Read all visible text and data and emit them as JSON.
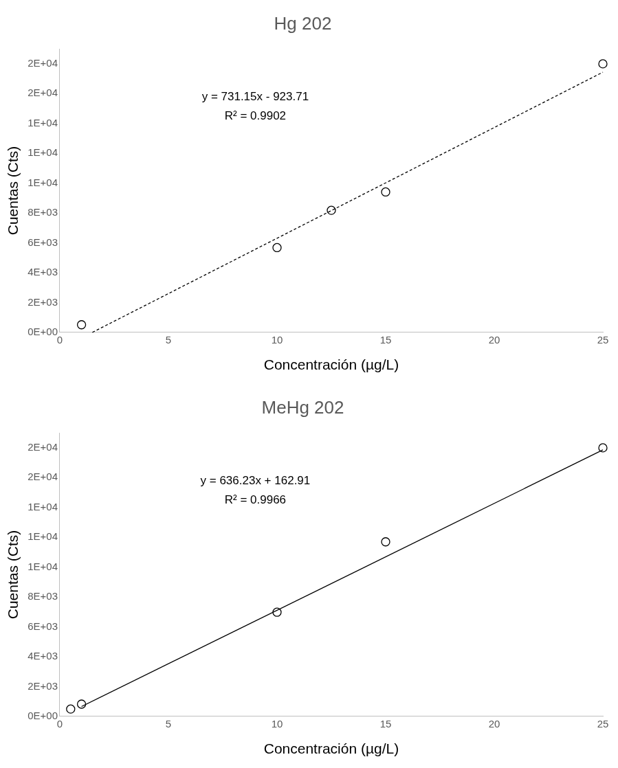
{
  "chart_data": [
    {
      "type": "scatter",
      "title": "Hg 202",
      "xlabel": "Concentración (µg/L)",
      "ylabel": "Cuentas (Cts)",
      "xlim": [
        0,
        25
      ],
      "xticks": [
        0,
        5,
        10,
        15,
        20,
        25
      ],
      "ylim": [
        0,
        19000
      ],
      "yticks": [
        {
          "value": 0,
          "label": "0E+00"
        },
        {
          "value": 2000,
          "label": "2E+03"
        },
        {
          "value": 4000,
          "label": "4E+03"
        },
        {
          "value": 6000,
          "label": "6E+03"
        },
        {
          "value": 8000,
          "label": "8E+03"
        },
        {
          "value": 10000,
          "label": "1E+04"
        },
        {
          "value": 12000,
          "label": "1E+04"
        },
        {
          "value": 14000,
          "label": "1E+04"
        },
        {
          "value": 16000,
          "label": "2E+04"
        },
        {
          "value": 18000,
          "label": "2E+04"
        }
      ],
      "grid": false,
      "legend": false,
      "marker": "circle",
      "annotations": [
        "y = 731.15x - 923.71",
        "R² = 0.9902"
      ],
      "series": [
        {
          "type": "scatter",
          "color": "#000000",
          "x": [
            1,
            10,
            12.5,
            15,
            25
          ],
          "values": [
            510,
            5680,
            8180,
            9410,
            18000
          ]
        },
        {
          "type": "line",
          "color": "#000000",
          "line_style": "dashed",
          "marker": "none",
          "x": [
            1.5,
            25
          ],
          "values": [
            0,
            17440
          ]
        }
      ]
    },
    {
      "type": "scatter",
      "title": "MeHg 202",
      "xlabel": "Concentración (µg/L)",
      "ylabel": "Cuentas (Cts)",
      "xlim": [
        0,
        25
      ],
      "xticks": [
        0,
        5,
        10,
        15,
        20,
        25
      ],
      "ylim": [
        0,
        19000
      ],
      "yticks": [
        {
          "value": 0,
          "label": "0E+00"
        },
        {
          "value": 2000,
          "label": "2E+03"
        },
        {
          "value": 4000,
          "label": "4E+03"
        },
        {
          "value": 6000,
          "label": "6E+03"
        },
        {
          "value": 8000,
          "label": "8E+03"
        },
        {
          "value": 10000,
          "label": "1E+04"
        },
        {
          "value": 12000,
          "label": "1E+04"
        },
        {
          "value": 14000,
          "label": "1E+04"
        },
        {
          "value": 16000,
          "label": "2E+04"
        },
        {
          "value": 18000,
          "label": "2E+04"
        }
      ],
      "grid": false,
      "legend": false,
      "marker": "circle",
      "annotations": [
        "y = 636.23x + 162.91",
        "R² = 0.9966"
      ],
      "series": [
        {
          "type": "scatter",
          "color": "#000000",
          "x": [
            0.5,
            1,
            10,
            15,
            25
          ],
          "values": [
            490,
            820,
            6980,
            11700,
            18000
          ]
        },
        {
          "type": "line",
          "color": "#000000",
          "line_style": "solid",
          "marker": "none",
          "x": [
            1,
            25
          ],
          "values": [
            660,
            17860
          ]
        }
      ]
    }
  ]
}
